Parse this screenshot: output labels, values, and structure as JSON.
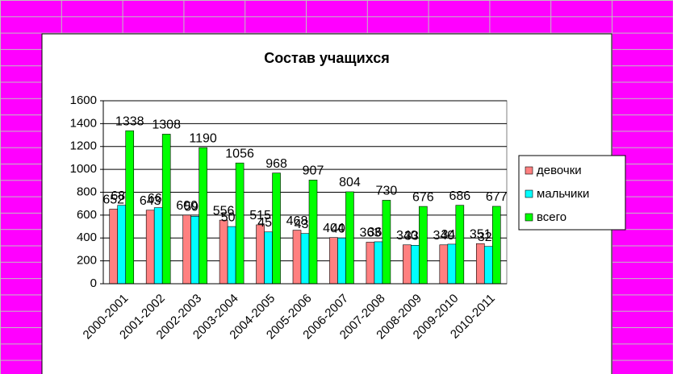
{
  "chart_data": {
    "type": "bar",
    "title": "Состав учащихся",
    "categories": [
      "2000-2001",
      "2001-2002",
      "2002-2003",
      "2003-2004",
      "2004-2005",
      "2005-2006",
      "2006-2007",
      "2007-2008",
      "2008-2009",
      "2009-2010",
      "2010-2011"
    ],
    "series": [
      {
        "name": "девочки",
        "color": "#ff8080",
        "values": [
          652,
          643,
          600,
          556,
          515,
          468,
          404,
          363,
          340,
          340,
          351
        ]
      },
      {
        "name": "мальчики",
        "color": "#00ffff",
        "values": [
          686,
          665,
          590,
          500,
          453,
          439,
          400,
          367,
          336,
          346,
          326
        ]
      },
      {
        "name": "всего",
        "color": "#00ff00",
        "values": [
          1338,
          1308,
          1190,
          1056,
          968,
          907,
          804,
          730,
          676,
          686,
          677
        ]
      }
    ],
    "ylim": [
      0,
      1600
    ],
    "yticks": [
      0,
      200,
      400,
      600,
      800,
      1000,
      1200,
      1400,
      1600
    ],
    "grid": true,
    "legend": "right"
  }
}
